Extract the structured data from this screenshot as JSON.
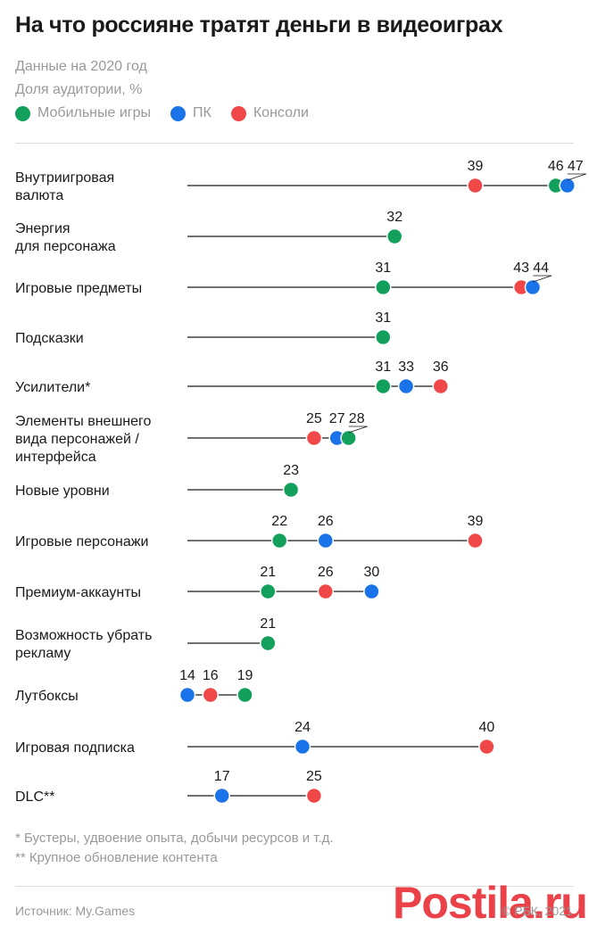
{
  "header": {
    "title": "На что россияне тратят деньги в видеоиграх",
    "subtitle_year": "Данные на 2020 год",
    "subtitle_unit": "Доля аудитории, %"
  },
  "legend": [
    {
      "label": "Мобильные игры",
      "color": "#12a05c"
    },
    {
      "label": "ПК",
      "color": "#1a73e8"
    },
    {
      "label": "Консоли",
      "color": "#f04848"
    }
  ],
  "chart_data": {
    "type": "dot",
    "series": [
      {
        "name": "Мобильные игры",
        "color": "#12a05c"
      },
      {
        "name": "ПК",
        "color": "#1a73e8"
      },
      {
        "name": "Консоли",
        "color": "#f04848"
      }
    ],
    "categories": [
      {
        "label": [
          "Внутриигровая",
          "валюта"
        ],
        "values": {
          "Мобильные игры": 46,
          "ПК": 47,
          "Консоли": 39
        }
      },
      {
        "label": [
          "Энергия",
          "для персонажа"
        ],
        "values": {
          "Мобильные игры": 32
        }
      },
      {
        "label": [
          "Игровые предметы"
        ],
        "values": {
          "Мобильные игры": 31,
          "ПК": 44,
          "Консоли": 43
        }
      },
      {
        "label": [
          "Подсказки"
        ],
        "values": {
          "Мобильные игры": 31
        }
      },
      {
        "label": [
          "Усилители*"
        ],
        "values": {
          "Мобильные игры": 31,
          "ПК": 33,
          "Консоли": 36
        }
      },
      {
        "label": [
          "Элементы внешнего",
          "вида персонажей /",
          "интерфейса"
        ],
        "values": {
          "Мобильные игры": 28,
          "ПК": 27,
          "Консоли": 25
        }
      },
      {
        "label": [
          "Новые уровни"
        ],
        "values": {
          "Мобильные игры": 23
        }
      },
      {
        "label": [
          "Игровые персонажи"
        ],
        "values": {
          "Мобильные игры": 22,
          "ПК": 26,
          "Консоли": 39
        }
      },
      {
        "label": [
          "Премиум-аккаунты"
        ],
        "values": {
          "Мобильные игры": 21,
          "ПК": 30,
          "Консоли": 26
        }
      },
      {
        "label": [
          "Возможность убрать",
          "рекламу"
        ],
        "values": {
          "Мобильные игры": 21
        }
      },
      {
        "label": [
          "Лутбоксы"
        ],
        "values": {
          "Мобильные игры": 19,
          "ПК": 14,
          "Консоли": 16
        }
      },
      {
        "label": [
          "Игровая подписка"
        ],
        "values": {
          "ПК": 24,
          "Консоли": 40
        }
      },
      {
        "label": [
          "DLC**"
        ],
        "values": {
          "ПК": 17,
          "Консоли": 25
        }
      }
    ]
  },
  "footnotes": {
    "one": "* Бустеры, удвоение опыта, добычи ресурсов и т.д.",
    "two": "** Крупное обновление контента"
  },
  "footer": {
    "source": "Источник: My.Games",
    "copyright": "© РБК, 2021",
    "watermark": "Postila.ru"
  }
}
